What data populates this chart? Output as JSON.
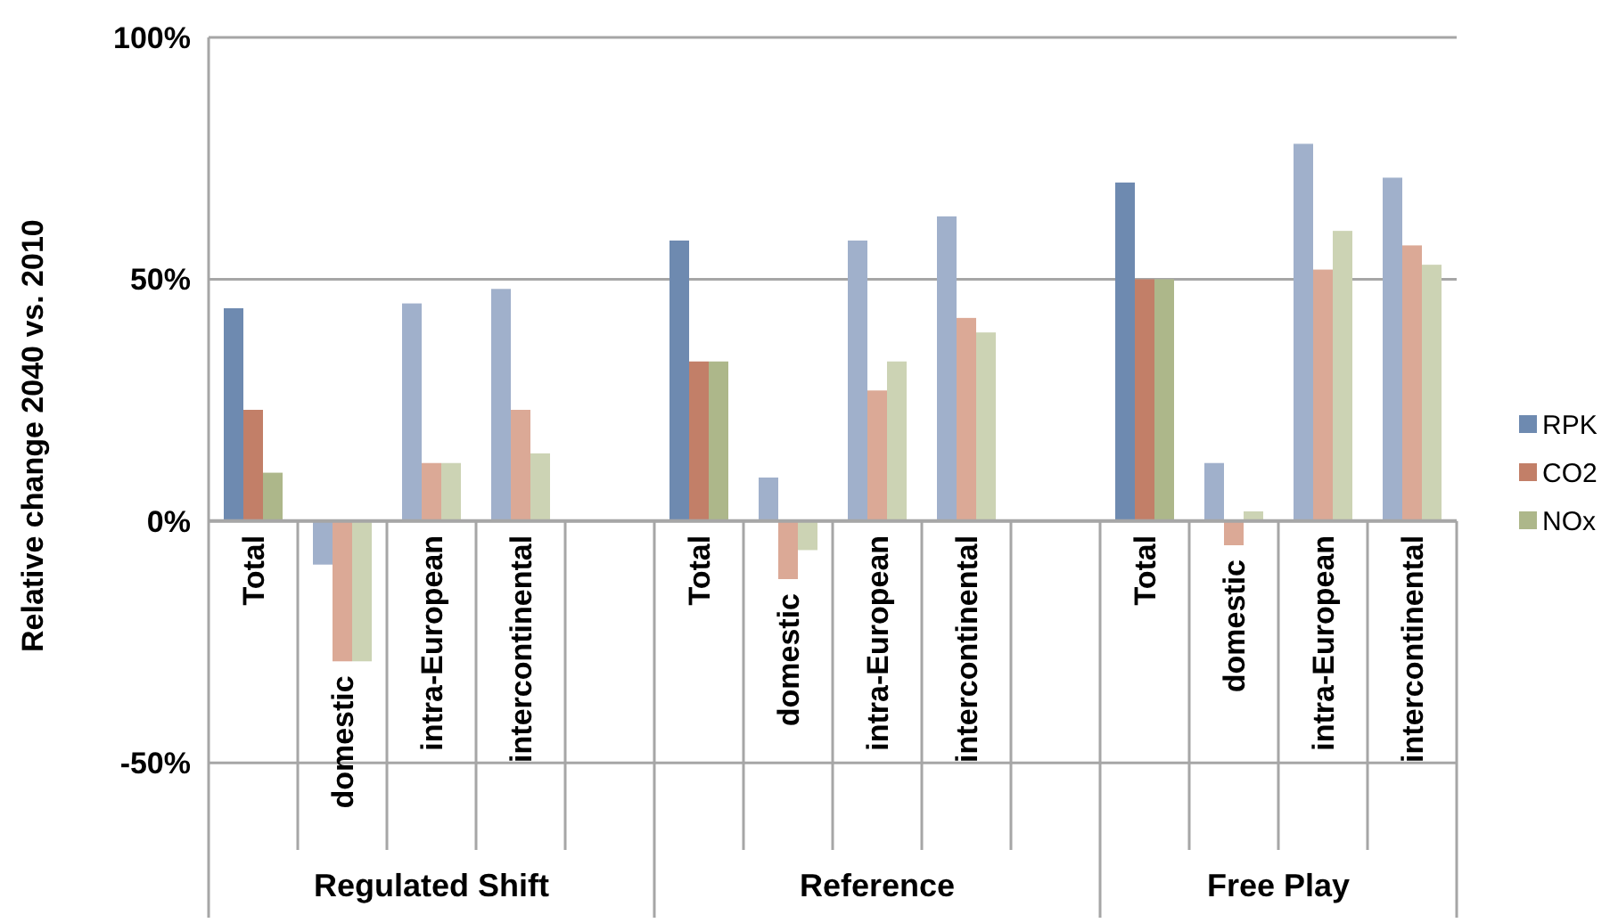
{
  "chart_data": {
    "type": "bar",
    "ylabel": "Relative change 2040 vs. 2010",
    "categories": [
      "Total",
      "domestic",
      "intra-European",
      "intercontinental",
      null,
      "Total",
      "domestic",
      "intra-European",
      "intercontinental",
      null,
      "Total",
      "domestic",
      "intra-European",
      "intercontinental"
    ],
    "series": [
      {
        "name": "RPK",
        "color": "#6e8ab0",
        "colors": [
          "#6e8ab0",
          "#a0b0cb",
          "#a0b0cb",
          "#a0b0cb",
          null,
          "#6e8ab0",
          "#a0b0cb",
          "#a0b0cb",
          "#a0b0cb",
          null,
          "#6e8ab0",
          "#a0b0cb",
          "#a0b0cb",
          "#a0b0cb"
        ],
        "values": [
          44,
          -9,
          45,
          48,
          null,
          58,
          9,
          58,
          63,
          null,
          70,
          12,
          78,
          71
        ]
      },
      {
        "name": "CO2",
        "color": "#c27f68",
        "colors": [
          "#c27f68",
          "#dba996",
          "#dba996",
          "#dba996",
          null,
          "#c27f68",
          "#dba996",
          "#dba996",
          "#dba996",
          null,
          "#c27f68",
          "#dba996",
          "#dba996",
          "#dba996"
        ],
        "values": [
          23,
          -29,
          12,
          23,
          null,
          33,
          -12,
          27,
          42,
          null,
          50,
          -5,
          52,
          57
        ]
      },
      {
        "name": "NOx",
        "color": "#adb78a",
        "colors": [
          "#adb78a",
          "#ccd3b4",
          "#ccd3b4",
          "#ccd3b4",
          null,
          "#adb78a",
          "#ccd3b4",
          "#ccd3b4",
          "#ccd3b4",
          null,
          "#adb78a",
          "#ccd3b4",
          "#ccd3b4",
          "#ccd3b4"
        ],
        "values": [
          10,
          -29,
          12,
          14,
          null,
          33,
          -6,
          33,
          39,
          null,
          50,
          2,
          60,
          53
        ]
      }
    ],
    "ylim": [
      -82,
      100
    ],
    "yticks": [
      {
        "value": -50,
        "label": "-50%"
      },
      {
        "value": 0,
        "label": "0%"
      },
      {
        "value": 50,
        "label": "50%"
      },
      {
        "value": 100,
        "label": "100%"
      }
    ],
    "grid": "y",
    "legend": "right",
    "annotations": [
      "Regulated Shift",
      "Reference",
      "Free Play"
    ]
  }
}
